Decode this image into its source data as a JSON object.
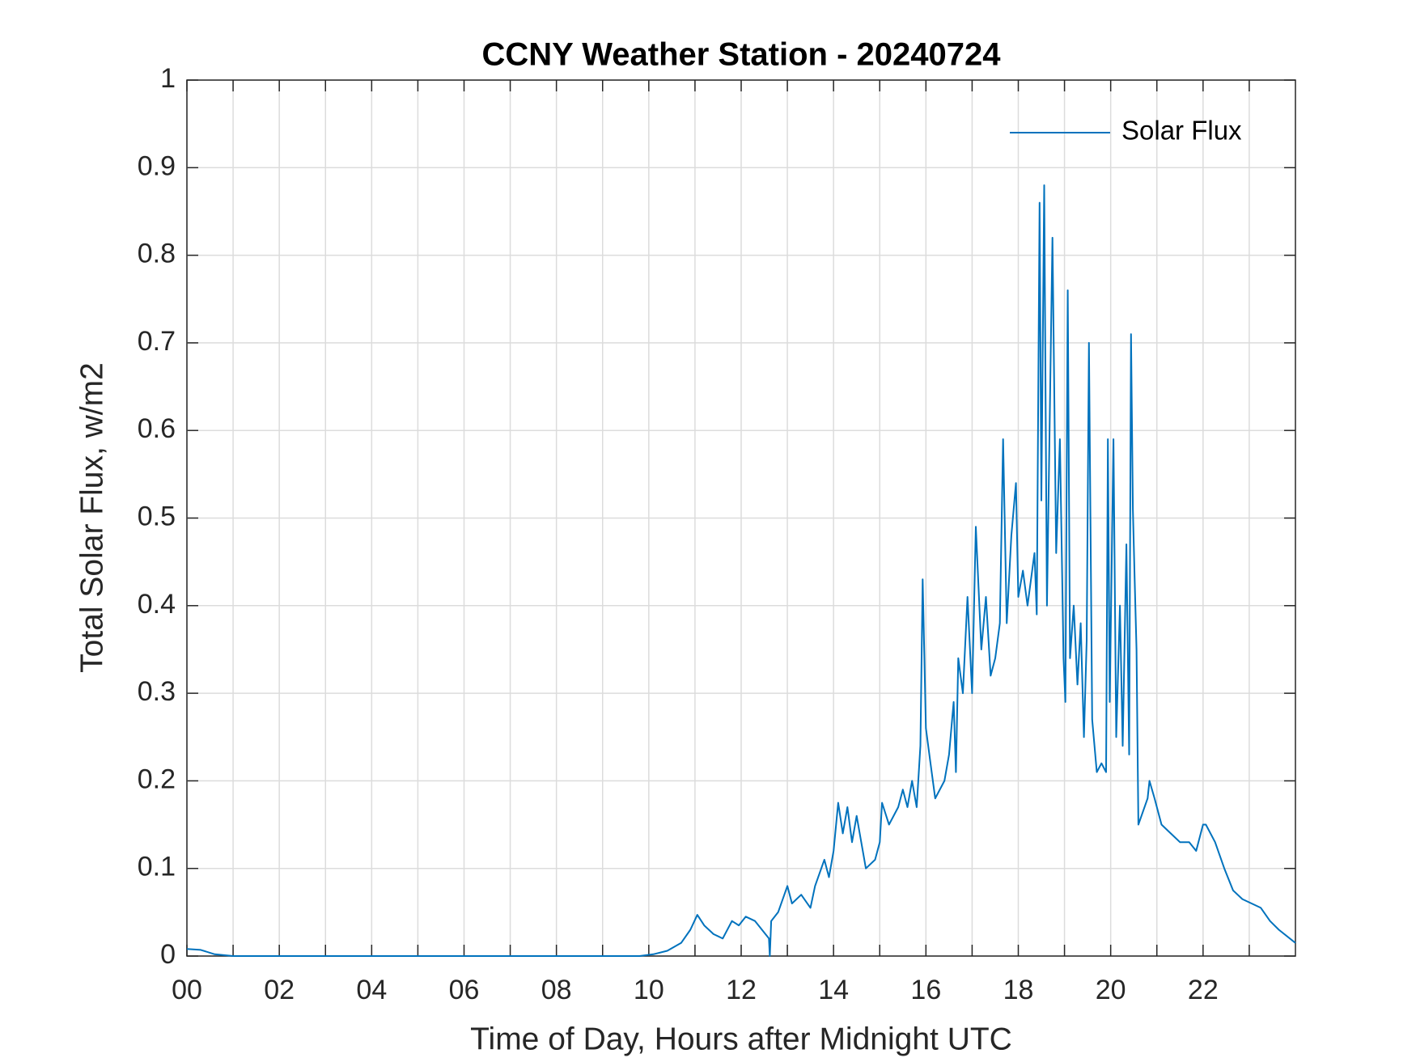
{
  "chart_data": {
    "type": "line",
    "title": "CCNY Weather Station - 20240724",
    "xlabel": "Time of Day, Hours after Midnight UTC",
    "ylabel": "Total Solar Flux, w/m2",
    "x": [
      0,
      0.3,
      0.6,
      1,
      9.8,
      10.1,
      10.4,
      10.7,
      10.9,
      11.05,
      11.2,
      11.4,
      11.6,
      11.8,
      11.95,
      12.1,
      12.3,
      12.45,
      12.6,
      12.62,
      12.65,
      12.8,
      13.0,
      13.1,
      13.3,
      13.5,
      13.6,
      13.8,
      13.9,
      14.0,
      14.1,
      14.2,
      14.3,
      14.4,
      14.5,
      14.6,
      14.7,
      14.9,
      15.0,
      15.05,
      15.2,
      15.4,
      15.5,
      15.6,
      15.7,
      15.8,
      15.88,
      15.93,
      16.0,
      16.1,
      16.2,
      16.4,
      16.5,
      16.6,
      16.65,
      16.7,
      16.8,
      16.9,
      17.0,
      17.08,
      17.2,
      17.3,
      17.4,
      17.5,
      17.6,
      17.67,
      17.75,
      17.85,
      17.95,
      18.0,
      18.1,
      18.2,
      18.35,
      18.4,
      18.46,
      18.5,
      18.56,
      18.62,
      18.74,
      18.82,
      18.9,
      18.98,
      19.02,
      19.07,
      19.12,
      19.2,
      19.28,
      19.35,
      19.42,
      19.48,
      19.53,
      19.6,
      19.7,
      19.8,
      19.9,
      19.94,
      19.98,
      20.06,
      20.12,
      20.2,
      20.26,
      20.34,
      20.4,
      20.44,
      20.48,
      20.52,
      20.56,
      20.6,
      20.8,
      20.84,
      20.95,
      21.1,
      21.3,
      21.5,
      21.7,
      21.85,
      22.0,
      22.06,
      22.26,
      22.46,
      22.65,
      22.85,
      23.05,
      23.25,
      23.45,
      23.64,
      24
    ],
    "series": [
      {
        "name": "Solar Flux",
        "color": "#0072bd",
        "values": [
          0.008,
          0.007,
          0.002,
          0,
          0,
          0.002,
          0.006,
          0.015,
          0.03,
          0.047,
          0.035,
          0.025,
          0.02,
          0.04,
          0.035,
          0.045,
          0.04,
          0.03,
          0.02,
          0,
          0.04,
          0.05,
          0.08,
          0.06,
          0.07,
          0.055,
          0.08,
          0.11,
          0.09,
          0.12,
          0.175,
          0.14,
          0.17,
          0.13,
          0.16,
          0.13,
          0.1,
          0.11,
          0.13,
          0.175,
          0.15,
          0.17,
          0.19,
          0.17,
          0.2,
          0.17,
          0.24,
          0.43,
          0.26,
          0.22,
          0.18,
          0.2,
          0.23,
          0.29,
          0.21,
          0.34,
          0.3,
          0.41,
          0.3,
          0.49,
          0.35,
          0.41,
          0.32,
          0.34,
          0.38,
          0.59,
          0.38,
          0.48,
          0.54,
          0.41,
          0.44,
          0.4,
          0.46,
          0.39,
          0.86,
          0.52,
          0.88,
          0.4,
          0.82,
          0.46,
          0.59,
          0.34,
          0.29,
          0.76,
          0.34,
          0.4,
          0.31,
          0.38,
          0.25,
          0.36,
          0.7,
          0.27,
          0.21,
          0.22,
          0.21,
          0.59,
          0.29,
          0.59,
          0.25,
          0.4,
          0.24,
          0.47,
          0.23,
          0.71,
          0.51,
          0.43,
          0.35,
          0.15,
          0.18,
          0.2,
          0.18,
          0.15,
          0.14,
          0.13,
          0.13,
          0.12,
          0.15,
          0.15,
          0.13,
          0.1,
          0.075,
          0.065,
          0.06,
          0.055,
          0.04,
          0.03,
          0.015
        ]
      }
    ],
    "xlim": [
      0,
      24
    ],
    "xticks": [
      {
        "value": 0,
        "label": "00"
      },
      {
        "value": 2,
        "label": "02"
      },
      {
        "value": 4,
        "label": "04"
      },
      {
        "value": 6,
        "label": "06"
      },
      {
        "value": 8,
        "label": "08"
      },
      {
        "value": 10,
        "label": "10"
      },
      {
        "value": 12,
        "label": "12"
      },
      {
        "value": 14,
        "label": "14"
      },
      {
        "value": 16,
        "label": "16"
      },
      {
        "value": 18,
        "label": "18"
      },
      {
        "value": 20,
        "label": "20"
      },
      {
        "value": 22,
        "label": "22"
      }
    ],
    "xminorticks": [
      1,
      3,
      5,
      7,
      9,
      11,
      13,
      15,
      17,
      19,
      21,
      23
    ],
    "ylim": [
      0,
      1
    ],
    "yticks": [
      0,
      0.1,
      0.2,
      0.3,
      0.4,
      0.5,
      0.6,
      0.7,
      0.8,
      0.9,
      1
    ],
    "grid": true,
    "legend": "top-right"
  }
}
